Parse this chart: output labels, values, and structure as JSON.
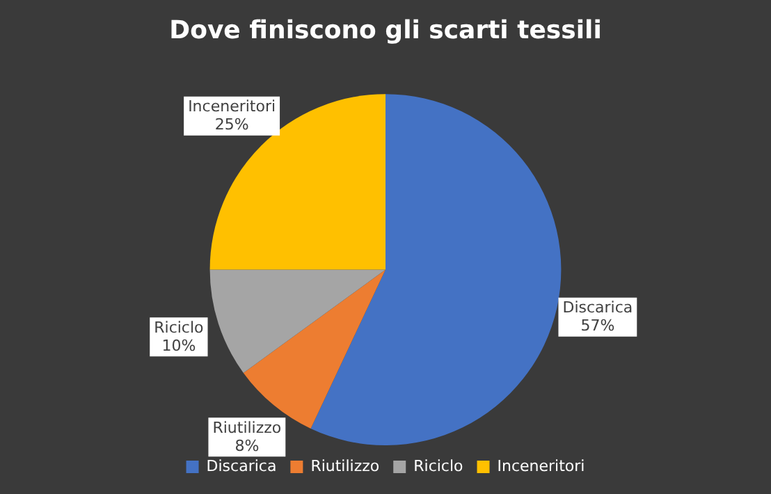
{
  "chart_data": {
    "type": "pie",
    "title": "Dove finiscono gli scarti tessili",
    "categories": [
      "Discarica",
      "Riutilizzo",
      "Riciclo",
      "Inceneritori"
    ],
    "values": [
      57,
      8,
      10,
      25
    ],
    "colors": [
      "#4472c4",
      "#ed7d31",
      "#a5a5a5",
      "#ffc000"
    ],
    "value_labels": [
      "57%",
      "8%",
      "10%",
      "25%"
    ],
    "legend": "bottom"
  }
}
